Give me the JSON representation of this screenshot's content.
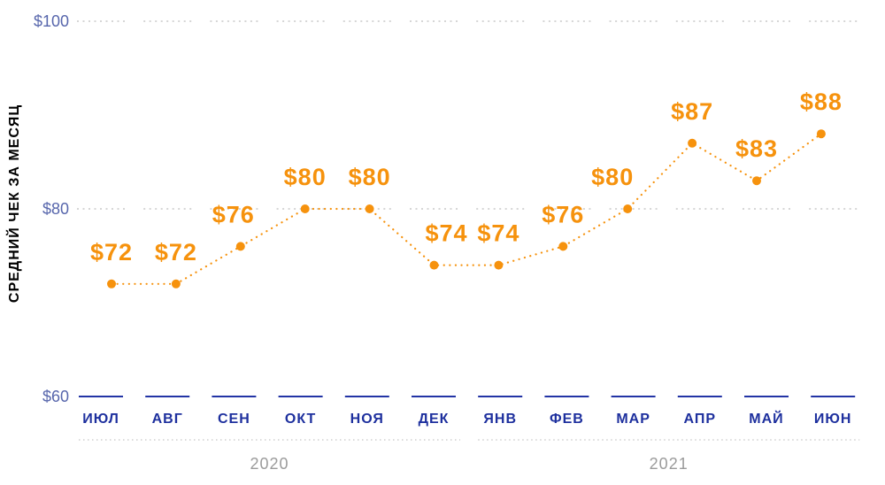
{
  "chart_data": {
    "type": "line",
    "title": "",
    "ylabel": "СРЕДНИЙ ЧЕК ЗА МЕСЯЦ",
    "xlabel": "",
    "categories": [
      "ИЮЛ",
      "АВГ",
      "СЕН",
      "ОКТ",
      "НОЯ",
      "ДЕК",
      "ЯНВ",
      "ФЕВ",
      "МАР",
      "АПР",
      "МАЙ",
      "ИЮН"
    ],
    "values": [
      72,
      72,
      76,
      80,
      80,
      74,
      74,
      76,
      80,
      87,
      83,
      88
    ],
    "point_labels": [
      "$72",
      "$72",
      "$76",
      "$80",
      "$80",
      "$74",
      "$74",
      "$76",
      "$80",
      "$87",
      "$83",
      "$88"
    ],
    "y_ticks": [
      {
        "label": "$100",
        "value": 100
      },
      {
        "label": "$80",
        "value": 80
      },
      {
        "label": "$60",
        "value": 60
      }
    ],
    "ylim": [
      60,
      100
    ],
    "year_groups": [
      {
        "label": "2020",
        "start": 0,
        "end": 5
      },
      {
        "label": "2021",
        "start": 6,
        "end": 11
      }
    ],
    "grid": "horizontal dotted segments at $100 and $80, solid blue tick segments at $60 baseline",
    "legend_position": "none",
    "line_style": "dotted",
    "marker": "filled-circle",
    "colors": {
      "accent_orange": "#F6920D",
      "month_label_blue": "#1E309E",
      "y_tick_label_blue": "#5766AC",
      "axis_title_blue": "#2233A2",
      "base_tick_blue": "#2334A5",
      "gridline_gray": "#D6D6D6",
      "separator_gray": "#CFCFCF",
      "year_label_gray": "#9B9B9B",
      "background": "#FFFFFF"
    }
  }
}
